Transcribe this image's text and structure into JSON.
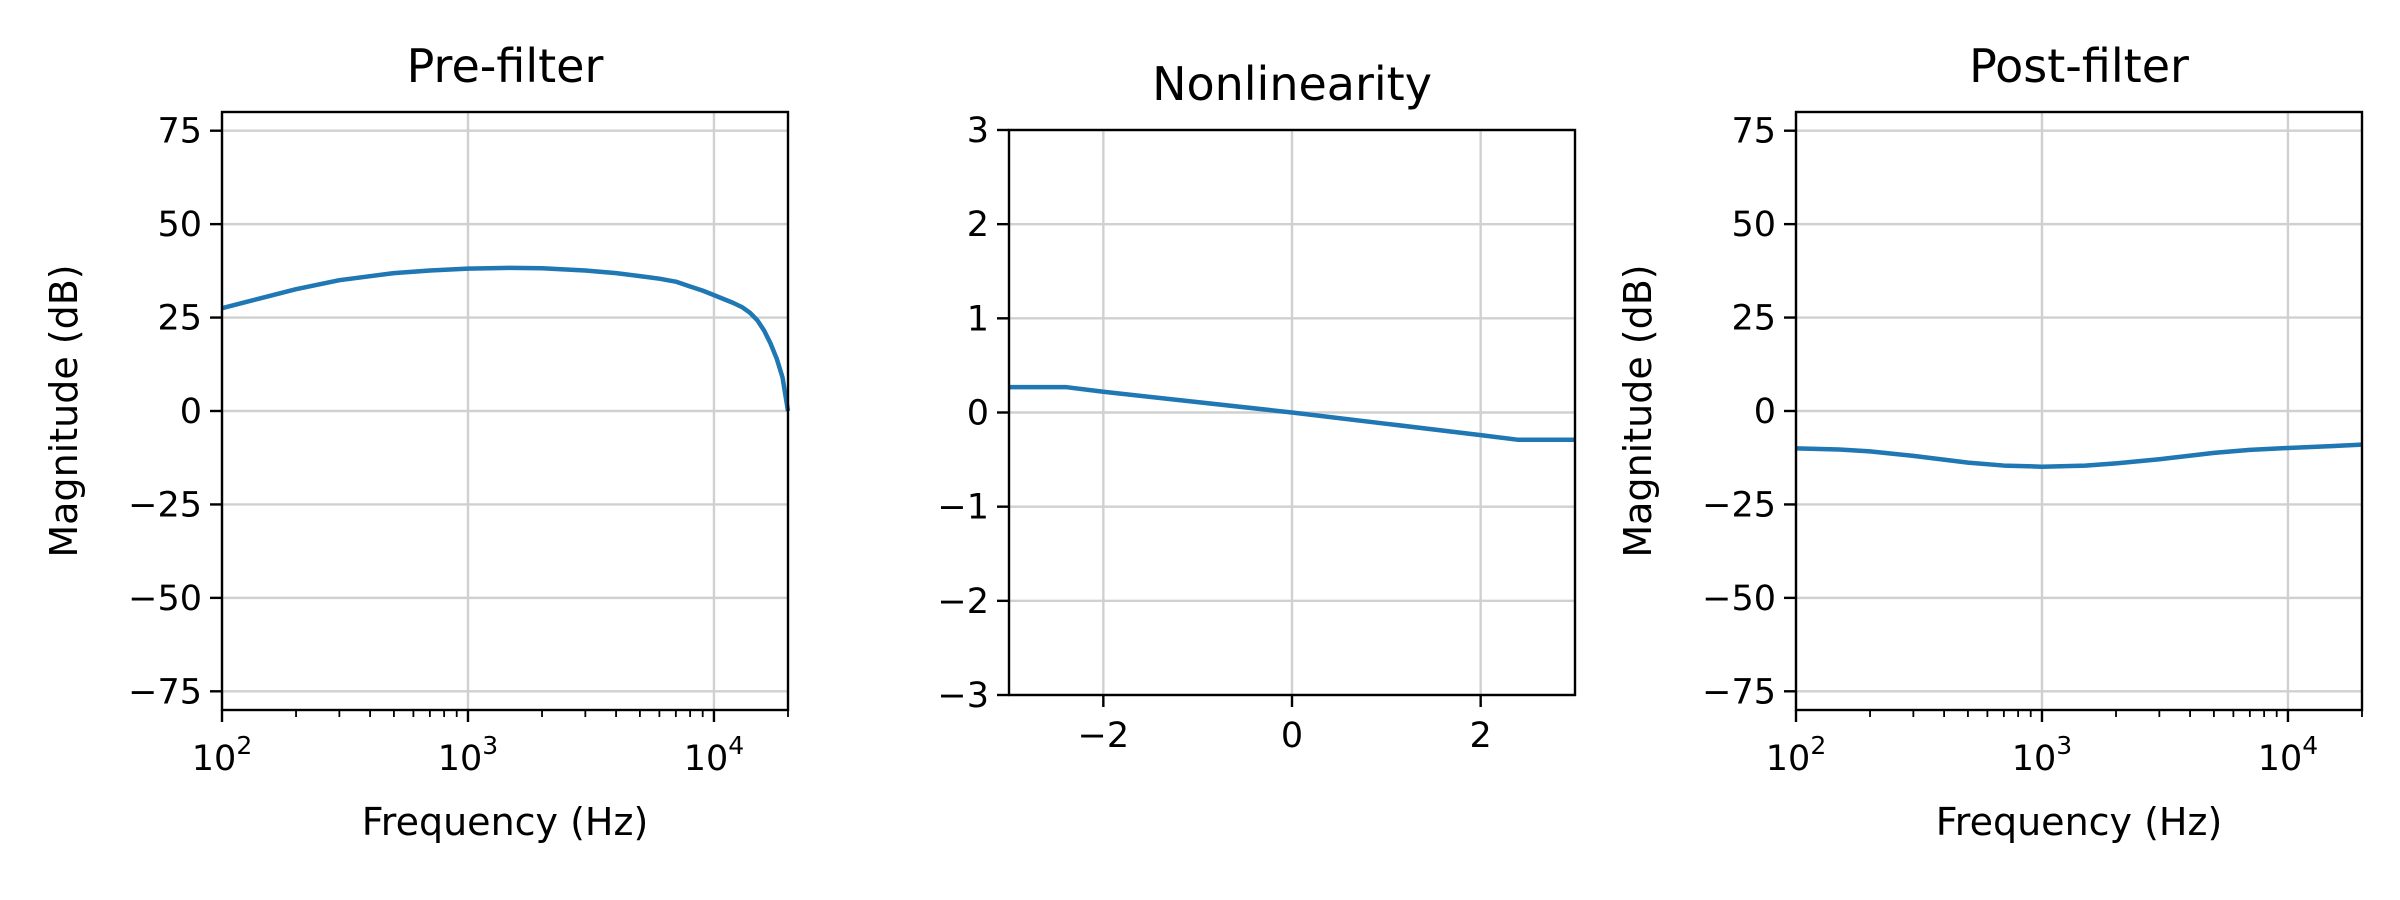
{
  "chart_data": [
    {
      "type": "line",
      "title": "Pre-filter",
      "xlabel": "Frequency (Hz)",
      "ylabel": "Magnitude (dB)",
      "xscale": "log",
      "xlim": [
        100,
        20000
      ],
      "ylim": [
        -80,
        80
      ],
      "xticks": [
        100,
        1000,
        10000
      ],
      "xtick_labels": [
        [
          "10",
          "2"
        ],
        [
          "10",
          "3"
        ],
        [
          "10",
          "4"
        ]
      ],
      "yticks": [
        75,
        50,
        25,
        0,
        -25,
        -50,
        -75
      ],
      "ytick_labels": [
        "75",
        "50",
        "25",
        "0",
        "−25",
        "−50",
        "−75"
      ],
      "grid": true,
      "line_color": "#1f77b4",
      "series": [
        {
          "x": [
            100,
            150,
            200,
            300,
            500,
            700,
            1000,
            1500,
            2000,
            3000,
            4000,
            5000,
            6000,
            7000,
            8000,
            9000,
            10000,
            11000,
            12000,
            13000,
            14000,
            15000,
            16000,
            17000,
            18000,
            19000,
            20000
          ],
          "y": [
            27.5,
            30.5,
            32.6,
            35.0,
            36.9,
            37.6,
            38.1,
            38.3,
            38.2,
            37.6,
            36.9,
            36.1,
            35.4,
            34.6,
            33.3,
            32.2,
            31.0,
            29.9,
            28.9,
            27.8,
            26.3,
            24.3,
            21.5,
            18.0,
            14.0,
            9.0,
            0.0
          ]
        }
      ]
    },
    {
      "type": "line",
      "title": "Nonlinearity",
      "xlabel": "",
      "ylabel": "",
      "xscale": "linear",
      "xlim": [
        -3,
        3
      ],
      "ylim": [
        -3,
        3
      ],
      "xticks": [
        -2,
        0,
        2
      ],
      "xtick_labels": [
        "−2",
        "0",
        "2"
      ],
      "yticks": [
        3,
        2,
        1,
        0,
        -1,
        -2,
        -3
      ],
      "ytick_labels": [
        "3",
        "2",
        "1",
        "0",
        "−1",
        "−2",
        "−3"
      ],
      "grid": true,
      "line_color": "#1f77b4",
      "series": [
        {
          "x": [
            -3,
            -2.4,
            -2.0,
            -1.0,
            0,
            1.0,
            2.0,
            2.4,
            3
          ],
          "y": [
            0.27,
            0.27,
            0.22,
            0.11,
            0.0,
            -0.12,
            -0.24,
            -0.29,
            -0.29
          ]
        }
      ]
    },
    {
      "type": "line",
      "title": "Post-filter",
      "xlabel": "Frequency (Hz)",
      "ylabel": "Magnitude (dB)",
      "xscale": "log",
      "xlim": [
        100,
        20000
      ],
      "ylim": [
        -80,
        80
      ],
      "xticks": [
        100,
        1000,
        10000
      ],
      "xtick_labels": [
        [
          "10",
          "2"
        ],
        [
          "10",
          "3"
        ],
        [
          "10",
          "4"
        ]
      ],
      "yticks": [
        75,
        50,
        25,
        0,
        -25,
        -50,
        -75
      ],
      "ytick_labels": [
        "75",
        "50",
        "25",
        "0",
        "−25",
        "−50",
        "−75"
      ],
      "grid": true,
      "line_color": "#1f77b4",
      "series": [
        {
          "x": [
            100,
            150,
            200,
            300,
            500,
            700,
            1000,
            1500,
            2000,
            3000,
            5000,
            7000,
            10000,
            15000,
            20000
          ],
          "y": [
            -10.0,
            -10.3,
            -10.8,
            -12.0,
            -13.8,
            -14.6,
            -14.9,
            -14.6,
            -14.0,
            -12.9,
            -11.2,
            -10.4,
            -9.9,
            -9.4,
            -9.0
          ]
        }
      ]
    }
  ]
}
